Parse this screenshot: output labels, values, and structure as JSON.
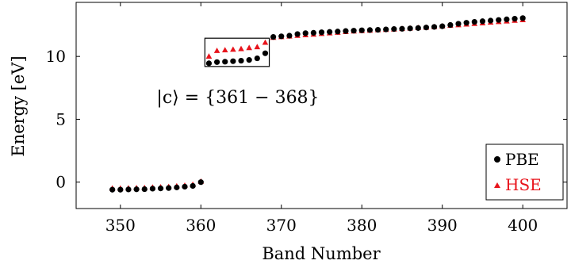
{
  "chart_data": {
    "type": "scatter",
    "xlabel": "Band Number",
    "ylabel": "Energy [eV]",
    "xlim": [
      344.5,
      405.5
    ],
    "ylim": [
      -2.1,
      14.3
    ],
    "x_ticks": [
      350,
      360,
      370,
      380,
      390,
      400
    ],
    "y_ticks": [
      0,
      5,
      10
    ],
    "grid": false,
    "legend_position": "bottom-right",
    "annotation": {
      "text": "|c⟩ = {361 − 368}",
      "box_x": [
        360.5,
        368.5
      ],
      "box_y": [
        9.2,
        11.45
      ]
    },
    "series": [
      {
        "name": "PBE",
        "marker": "circle",
        "color": "#000000",
        "x": [
          349,
          350,
          351,
          352,
          353,
          354,
          355,
          356,
          357,
          358,
          359,
          360,
          361,
          362,
          363,
          364,
          365,
          366,
          367,
          368,
          369,
          370,
          371,
          372,
          373,
          374,
          375,
          376,
          377,
          378,
          379,
          380,
          381,
          382,
          383,
          384,
          385,
          386,
          387,
          388,
          389,
          390,
          391,
          392,
          393,
          394,
          395,
          396,
          397,
          398,
          399,
          400
        ],
        "y": [
          -0.6,
          -0.6,
          -0.58,
          -0.57,
          -0.56,
          -0.52,
          -0.5,
          -0.47,
          -0.42,
          -0.36,
          -0.3,
          0.0,
          9.45,
          9.55,
          9.58,
          9.62,
          9.66,
          9.72,
          9.85,
          10.25,
          11.55,
          11.6,
          11.65,
          11.78,
          11.85,
          11.88,
          11.92,
          11.95,
          11.98,
          12.02,
          12.05,
          12.08,
          12.1,
          12.12,
          12.15,
          12.18,
          12.2,
          12.23,
          12.26,
          12.3,
          12.35,
          12.4,
          12.5,
          12.6,
          12.68,
          12.75,
          12.8,
          12.85,
          12.9,
          12.95,
          13.0,
          13.05
        ]
      },
      {
        "name": "HSE",
        "marker": "triangle",
        "color": "#e8141c",
        "x": [
          349,
          350,
          351,
          352,
          353,
          354,
          355,
          356,
          357,
          358,
          359,
          360,
          361,
          362,
          363,
          364,
          365,
          366,
          367,
          368,
          369,
          370,
          371,
          372,
          373,
          374,
          375,
          376,
          377,
          378,
          379,
          380,
          381,
          382,
          383,
          384,
          385,
          386,
          387,
          388,
          389,
          390,
          391,
          392,
          393,
          394,
          395,
          396,
          397,
          398,
          399,
          400
        ],
        "y": [
          -0.5,
          -0.5,
          -0.48,
          -0.47,
          -0.46,
          -0.42,
          -0.4,
          -0.37,
          -0.32,
          -0.27,
          -0.2,
          0.05,
          10.0,
          10.45,
          10.5,
          10.55,
          10.6,
          10.68,
          10.75,
          11.1,
          11.5,
          11.55,
          11.6,
          11.65,
          11.7,
          11.75,
          11.8,
          11.85,
          11.9,
          11.95,
          12.0,
          12.03,
          12.06,
          12.1,
          12.13,
          12.16,
          12.2,
          12.24,
          12.28,
          12.3,
          12.35,
          12.4,
          12.45,
          12.5,
          12.55,
          12.6,
          12.65,
          12.7,
          12.75,
          12.8,
          12.85,
          12.9
        ]
      }
    ]
  }
}
